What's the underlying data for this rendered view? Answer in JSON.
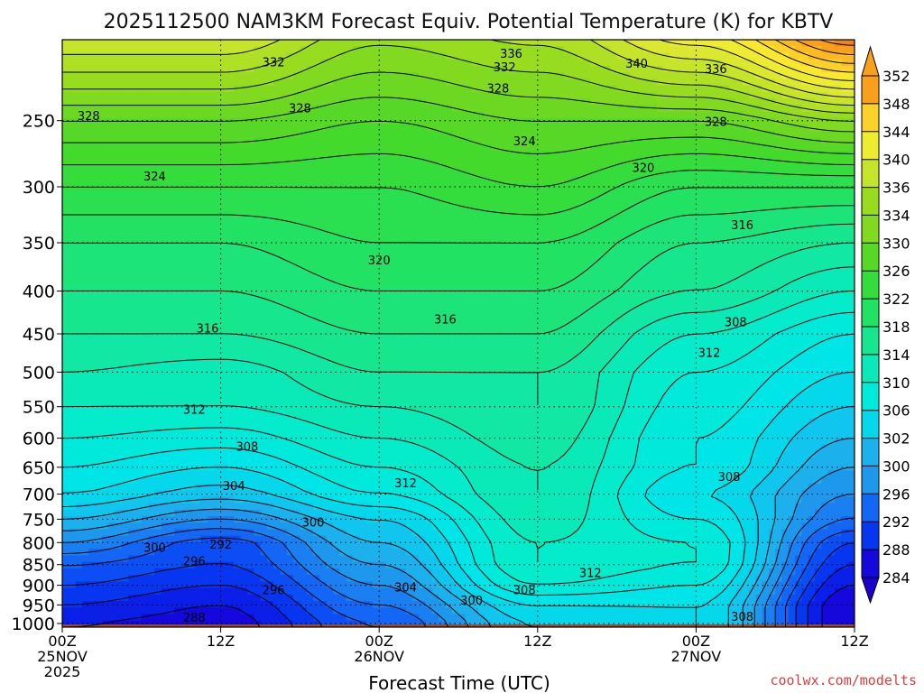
{
  "chart_data": {
    "type": "heatmap",
    "title": "2025112500 NAM3KM Forecast Equiv. Potential Temperature (K) for KBTV",
    "xlabel": "Forecast Time (UTC)",
    "ylabel": "",
    "credit": "coolwx.com/modelts",
    "x_ticks": [
      {
        "hour": 0,
        "line1": "00Z",
        "line2": "25NOV",
        "line3": "2025"
      },
      {
        "hour": 12,
        "line1": "12Z",
        "line2": "",
        "line3": ""
      },
      {
        "hour": 24,
        "line1": "00Z",
        "line2": "26NOV",
        "line3": ""
      },
      {
        "hour": 36,
        "line1": "12Z",
        "line2": "",
        "line3": ""
      },
      {
        "hour": 48,
        "line1": "00Z",
        "line2": "27NOV",
        "line3": ""
      },
      {
        "hour": 60,
        "line1": "12Z",
        "line2": "",
        "line3": ""
      }
    ],
    "xlim": [
      0,
      60
    ],
    "y_ticks": [
      250,
      300,
      350,
      400,
      450,
      500,
      550,
      600,
      650,
      700,
      750,
      800,
      850,
      900,
      950,
      1000
    ],
    "ylim": [
      1010,
      200
    ],
    "yscale": "log",
    "grid": true,
    "colorbar": {
      "labels": [
        352,
        348,
        344,
        340,
        336,
        334,
        330,
        326,
        322,
        318,
        314,
        310,
        306,
        302,
        300,
        296,
        292,
        288,
        284
      ],
      "levels": [
        284,
        286,
        288,
        290,
        292,
        294,
        296,
        298,
        300,
        302,
        304,
        306,
        308,
        310,
        312,
        314,
        316,
        318,
        320,
        322,
        324,
        326,
        328,
        330,
        332,
        334,
        336,
        338,
        340,
        342,
        344,
        346,
        348,
        350,
        352
      ],
      "colors": [
        "#1a00c8",
        "#1408dc",
        "#0a1fe8",
        "#0636f0",
        "#0a4ef4",
        "#1466f4",
        "#1a7ff0",
        "#1e98ec",
        "#1cb0ec",
        "#10c6ee",
        "#06d8ec",
        "#00e6e8",
        "#00eadc",
        "#04eccc",
        "#0aeab8",
        "#10e8a4",
        "#16e68e",
        "#1ce478",
        "#22e264",
        "#2ae050",
        "#34dc3c",
        "#44da2c",
        "#58d826",
        "#6cd822",
        "#82da20",
        "#98dc20",
        "#b0e024",
        "#c6e42a",
        "#dce830",
        "#eeec30",
        "#fae830",
        "#fcd22a",
        "#fcba22",
        "#f8a01c",
        "#f0841a"
      ]
    },
    "ground_color": "#9e4a2a",
    "series": [
      {
        "hour": 0,
        "theta_e_by_level": {
          "250": 330,
          "300": 324,
          "350": 320,
          "400": 318,
          "450": 316,
          "500": 314,
          "550": 312,
          "600": 310,
          "650": 308,
          "700": 306,
          "750": 302,
          "800": 298,
          "850": 294,
          "900": 292,
          "950": 290,
          "1000": 288
        }
      },
      {
        "hour": 12,
        "theta_e_by_level": {
          "250": 330,
          "300": 324,
          "350": 320,
          "400": 318,
          "450": 316,
          "500": 313,
          "550": 312,
          "600": 309,
          "650": 306,
          "700": 303,
          "750": 298,
          "800": 293,
          "850": 292,
          "900": 290,
          "950": 288,
          "1000": 287
        }
      },
      {
        "hour": 24,
        "theta_e_by_level": {
          "250": 328,
          "300": 324,
          "350": 322,
          "400": 320,
          "450": 318,
          "500": 316,
          "550": 314,
          "600": 312,
          "650": 310,
          "700": 308,
          "750": 304,
          "800": 302,
          "850": 300,
          "900": 298,
          "950": 296,
          "1000": 294
        }
      },
      {
        "hour": 36,
        "theta_e_by_level": {
          "250": 330,
          "300": 326,
          "350": 322,
          "400": 320,
          "450": 318,
          "500": 316,
          "550": 316,
          "600": 315,
          "650": 314,
          "700": 314,
          "750": 313,
          "800": 312,
          "850": 312,
          "900": 310,
          "950": 306,
          "1000": 304
        }
      },
      {
        "hour": 48,
        "theta_e_by_level": {
          "250": 330,
          "300": 322,
          "350": 318,
          "400": 316,
          "450": 312,
          "500": 310,
          "550": 309,
          "600": 308,
          "650": 308,
          "700": 306,
          "750": 308,
          "800": 310,
          "850": 310,
          "900": 308,
          "950": 306,
          "1000": 306
        }
      },
      {
        "hour": 60,
        "theta_e_by_level": {
          "250": 334,
          "300": 322,
          "350": 316,
          "400": 312,
          "450": 308,
          "500": 306,
          "550": 304,
          "600": 302,
          "650": 300,
          "700": 298,
          "750": 296,
          "800": 292,
          "850": 290,
          "900": 288,
          "950": 286,
          "1000": 286
        }
      }
    ],
    "contour_labels": [
      {
        "text": "332",
        "hour": 16,
        "p": 213
      },
      {
        "text": "336",
        "hour": 34,
        "p": 208
      },
      {
        "text": "332",
        "hour": 33.5,
        "p": 216
      },
      {
        "text": "340",
        "hour": 43.5,
        "p": 214
      },
      {
        "text": "336",
        "hour": 49.5,
        "p": 217
      },
      {
        "text": "328",
        "hour": 2,
        "p": 247
      },
      {
        "text": "328",
        "hour": 18,
        "p": 242
      },
      {
        "text": "328",
        "hour": 33,
        "p": 229
      },
      {
        "text": "328",
        "hour": 49.5,
        "p": 251
      },
      {
        "text": "324",
        "hour": 35,
        "p": 265
      },
      {
        "text": "324",
        "hour": 7,
        "p": 292
      },
      {
        "text": "320",
        "hour": 44,
        "p": 285
      },
      {
        "text": "316",
        "hour": 51.5,
        "p": 334
      },
      {
        "text": "320",
        "hour": 24,
        "p": 368
      },
      {
        "text": "316",
        "hour": 29,
        "p": 433
      },
      {
        "text": "316",
        "hour": 11,
        "p": 444
      },
      {
        "text": "308",
        "hour": 51,
        "p": 436
      },
      {
        "text": "312",
        "hour": 49,
        "p": 475
      },
      {
        "text": "312",
        "hour": 10,
        "p": 555
      },
      {
        "text": "308",
        "hour": 14,
        "p": 615
      },
      {
        "text": "308",
        "hour": 50.5,
        "p": 668
      },
      {
        "text": "304",
        "hour": 13,
        "p": 685
      },
      {
        "text": "312",
        "hour": 26,
        "p": 680
      },
      {
        "text": "300",
        "hour": 19,
        "p": 758
      },
      {
        "text": "300",
        "hour": 7,
        "p": 812
      },
      {
        "text": "292",
        "hour": 12,
        "p": 805
      },
      {
        "text": "296",
        "hour": 10,
        "p": 843
      },
      {
        "text": "312",
        "hour": 40,
        "p": 871
      },
      {
        "text": "296",
        "hour": 16,
        "p": 913
      },
      {
        "text": "304",
        "hour": 26,
        "p": 906
      },
      {
        "text": "308",
        "hour": 35,
        "p": 913
      },
      {
        "text": "300",
        "hour": 31,
        "p": 940
      },
      {
        "text": "288",
        "hour": 10,
        "p": 985
      },
      {
        "text": "308",
        "hour": 51.5,
        "p": 983
      }
    ]
  }
}
